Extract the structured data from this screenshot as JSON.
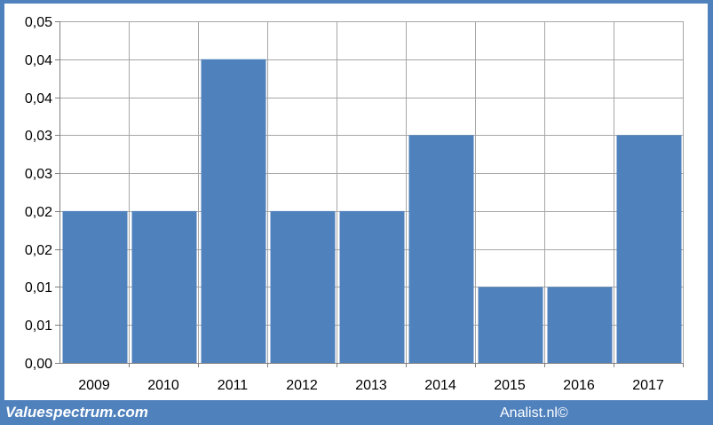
{
  "chart_data": {
    "type": "bar",
    "categories": [
      "2009",
      "2010",
      "2011",
      "2012",
      "2013",
      "2014",
      "2015",
      "2016",
      "2017"
    ],
    "values": [
      0.02,
      0.02,
      0.04,
      0.02,
      0.02,
      0.03,
      0.01,
      0.01,
      0.03
    ],
    "ylim": [
      0,
      0.045
    ],
    "ytick_values": [
      0,
      0.005,
      0.01,
      0.015,
      0.02,
      0.025,
      0.03,
      0.035,
      0.04,
      0.045
    ],
    "ytick_labels": [
      "0,00",
      "0,01",
      "0,01",
      "0,02",
      "0,02",
      "0,03",
      "0,03",
      "0,04",
      "0,04",
      "0,05"
    ],
    "grid": true,
    "bar_color": "#4f81bd",
    "grid_color": "#a6a6a6"
  },
  "footer": {
    "brand": "Valuespectrum.com",
    "credit": "Analist.nl©"
  },
  "colors": {
    "frame": "#4f81bd",
    "background": "#ffffff"
  }
}
